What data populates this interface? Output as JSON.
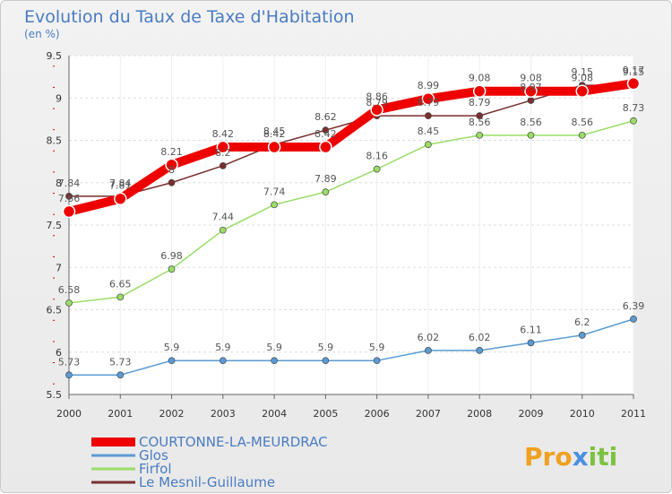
{
  "chart_data": {
    "type": "line",
    "title": "Evolution du Taux de Taxe d'Habitation",
    "subtitle": "(en %)",
    "x": [
      "2000",
      "2001",
      "2002",
      "2003",
      "2004",
      "2005",
      "2006",
      "2007",
      "2008",
      "2009",
      "2010",
      "2011"
    ],
    "ylim": [
      5.5,
      9.5
    ],
    "yticks": [
      5.5,
      6,
      6.5,
      7,
      7.5,
      8,
      8.5,
      9,
      9.5
    ],
    "grid": true,
    "legend_position": "bottom-left",
    "series": [
      {
        "name": "COURTONNE-LA-MEURDRAC",
        "color": "#ee0000",
        "values": [
          7.66,
          7.81,
          8.21,
          8.42,
          8.42,
          8.42,
          8.86,
          8.99,
          9.08,
          9.08,
          9.08,
          9.17
        ]
      },
      {
        "name": "Glos",
        "color": "#5b9bd5",
        "values": [
          5.73,
          5.73,
          5.9,
          5.9,
          5.9,
          5.9,
          5.9,
          6.02,
          6.02,
          6.11,
          6.2,
          6.39
        ]
      },
      {
        "name": "Firfol",
        "color": "#99dd66",
        "values": [
          6.58,
          6.65,
          6.98,
          7.44,
          7.74,
          7.89,
          8.16,
          8.45,
          8.56,
          8.56,
          8.56,
          8.73
        ]
      },
      {
        "name": "Le Mesnil-Guillaume",
        "color": "#7a2f2f",
        "values": [
          7.84,
          7.84,
          8.0,
          8.2,
          8.45,
          8.62,
          8.79,
          8.79,
          8.79,
          8.97,
          9.15,
          9.15
        ]
      }
    ]
  },
  "logo": {
    "text": "Proxiti"
  }
}
